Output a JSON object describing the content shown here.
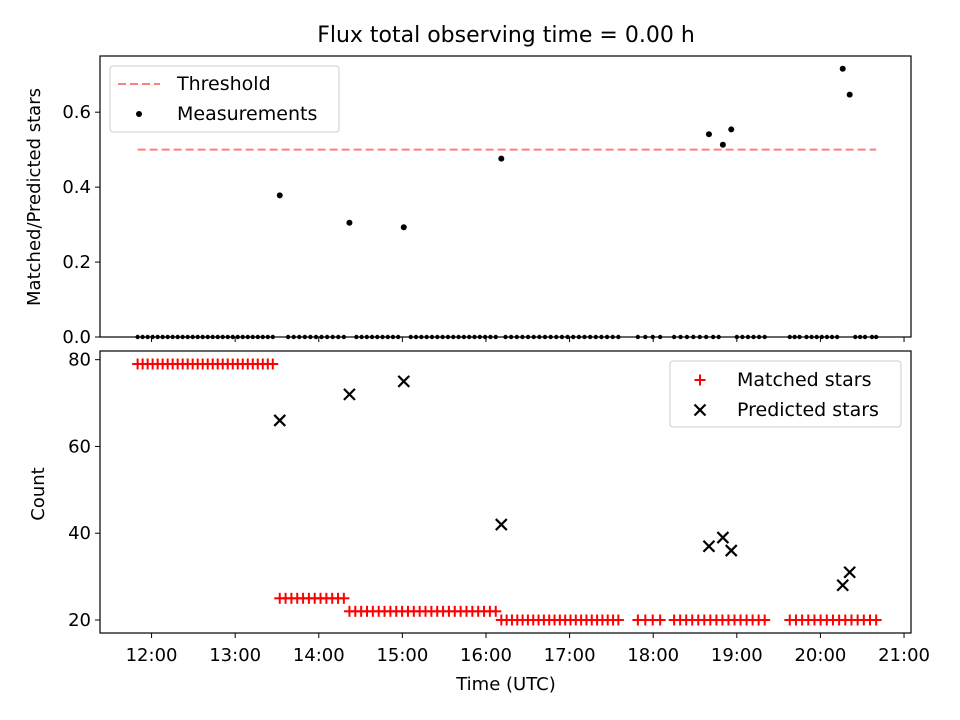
{
  "chart_data": [
    {
      "type": "scatter",
      "title": "Flux total observing time = 0.00 h",
      "xlabel": "",
      "ylabel": "Matched/Predicted stars",
      "ylim": [
        0,
        0.75
      ],
      "y_ticks": [
        "0.0",
        "0.2",
        "0.4",
        "0.6"
      ],
      "threshold": {
        "name": "Threshold",
        "value": 0.5,
        "x_range": [
          "11:50",
          "20:40"
        ],
        "color": "#ff7f7f"
      },
      "series": [
        {
          "name": "Measurements",
          "color": "#000000",
          "points": [
            [
              "13:32",
              0.378
            ],
            [
              "14:22",
              0.305
            ],
            [
              "15:01",
              0.293
            ],
            [
              "16:11",
              0.476
            ],
            [
              "18:40",
              0.541
            ],
            [
              "18:50",
              0.513
            ],
            [
              "18:56",
              0.554
            ],
            [
              "20:16",
              0.716
            ],
            [
              "20:21",
              0.647
            ]
          ],
          "zero_points": [
            [
              "11:50",
              "13:27",
              28
            ],
            [
              "13:38",
              "14:18",
              11
            ],
            [
              "14:27",
              "14:57",
              9
            ],
            [
              "15:06",
              "16:07",
              17
            ],
            [
              "16:14",
              "17:35",
              21
            ],
            [
              "17:49",
              "18:05",
              4
            ],
            [
              "18:15",
              "18:38",
              6
            ],
            [
              "18:43",
              "18:47",
              2
            ],
            [
              "19:00",
              "19:20",
              6
            ],
            [
              "19:38",
              "19:45",
              3
            ],
            [
              "19:50",
              "20:12",
              7
            ],
            [
              "20:25",
              "20:32",
              3
            ],
            [
              "20:37",
              "20:40",
              2
            ]
          ]
        }
      ]
    },
    {
      "type": "scatter",
      "title": "",
      "xlabel": "Time (UTC)",
      "ylabel": "Count",
      "ylim": [
        17,
        82
      ],
      "y_ticks": [
        "20",
        "40",
        "60",
        "80"
      ],
      "x_ticks": [
        "12:00",
        "13:00",
        "14:00",
        "15:00",
        "16:00",
        "17:00",
        "18:00",
        "19:00",
        "20:00",
        "21:00"
      ],
      "xlim": [
        "11:23",
        "21:05"
      ],
      "series": [
        {
          "name": "Matched stars",
          "color": "#ff0000",
          "marker": "+",
          "segments": [
            [
              "11:50",
              "13:27",
              79,
              28
            ],
            [
              "13:32",
              "14:18",
              25,
              12
            ],
            [
              "14:22",
              "16:07",
              22,
              26
            ],
            [
              "16:11",
              "17:35",
              20,
              23
            ],
            [
              "17:49",
              "18:05",
              20,
              4
            ],
            [
              "18:15",
              "19:20",
              20,
              16
            ],
            [
              "19:38",
              "20:40",
              20,
              15
            ]
          ]
        },
        {
          "name": "Predicted stars",
          "color": "#000000",
          "marker": "x",
          "points": [
            [
              "13:32",
              66
            ],
            [
              "14:22",
              72
            ],
            [
              "15:01",
              75
            ],
            [
              "16:11",
              42
            ],
            [
              "18:40",
              37
            ],
            [
              "18:50",
              39
            ],
            [
              "18:56",
              36
            ],
            [
              "20:16",
              28
            ],
            [
              "20:21",
              31
            ]
          ]
        }
      ]
    }
  ]
}
